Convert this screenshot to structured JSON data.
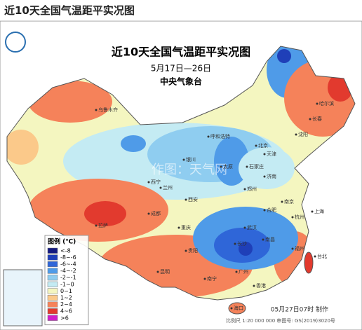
{
  "header": {
    "title": "近10天全国气温距平实况图"
  },
  "map": {
    "title": "近10天全国气温距平实况图",
    "date": "5月17日—26日",
    "agency": "中央气象台",
    "legend": {
      "title": "图例 (℃)",
      "items": [
        {
          "label": "<-8",
          "color": "#141a80"
        },
        {
          "label": "-8~-6",
          "color": "#1f3fb8"
        },
        {
          "label": "-6~-4",
          "color": "#2f66d8"
        },
        {
          "label": "-4~-2",
          "color": "#4f9be8"
        },
        {
          "label": "-2~-1",
          "color": "#8fcdf0"
        },
        {
          "label": "-1~0",
          "color": "#c4ebf3"
        },
        {
          "label": "0~1",
          "color": "#f4f6c0"
        },
        {
          "label": "1~2",
          "color": "#fbc98a"
        },
        {
          "label": "2~4",
          "color": "#f5825a"
        },
        {
          "label": "4~6",
          "color": "#e23a2e"
        },
        {
          "label": ">6",
          "color": "#d020c8"
        }
      ]
    },
    "cities": [
      "乌鲁木齐",
      "拉萨",
      "西宁",
      "兰州",
      "银川",
      "呼和浩特",
      "北京",
      "天津",
      "石家庄",
      "太原",
      "济南",
      "郑州",
      "西安",
      "成都",
      "重庆",
      "贵阳",
      "昆明",
      "南宁",
      "广州",
      "香港",
      "海口",
      "长沙",
      "武汉",
      "南昌",
      "福州",
      "台北",
      "杭州",
      "上海",
      "南京",
      "合肥",
      "沈阳",
      "长春",
      "哈尔滨"
    ],
    "watermark": "作图：天气网",
    "footer": "05月27日07时 制作",
    "scale": "比例尺 1:20 000 000  审图号: GS(2019)3020号"
  }
}
